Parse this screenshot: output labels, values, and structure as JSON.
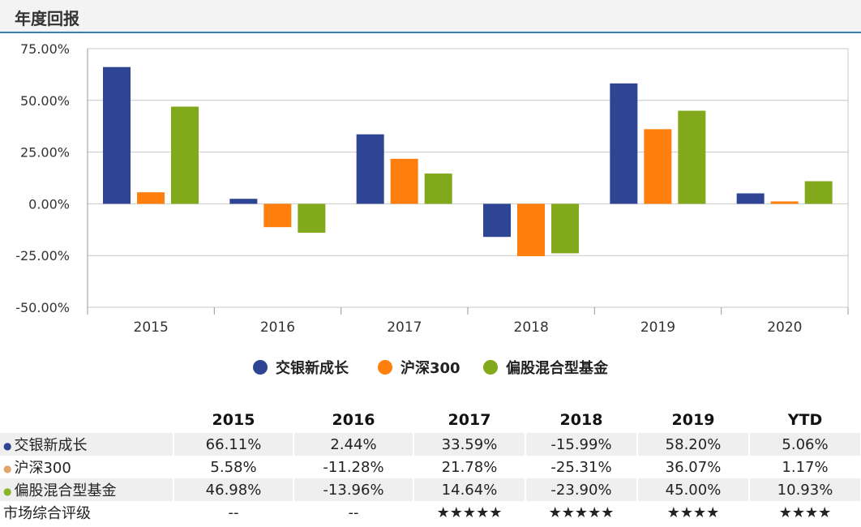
{
  "header": {
    "title": "年度回报"
  },
  "chart_data": {
    "type": "bar",
    "categories": [
      "2015",
      "2016",
      "2017",
      "2018",
      "2019",
      "2020"
    ],
    "series": [
      {
        "name": "交银新成长",
        "color": "#2e4593",
        "values": [
          66.11,
          2.44,
          33.59,
          -15.99,
          58.2,
          5.06
        ]
      },
      {
        "name": "沪深300",
        "color": "#ff7f0e",
        "values": [
          5.58,
          -11.28,
          21.78,
          -25.31,
          36.07,
          1.17
        ]
      },
      {
        "name": "偏股混合型基金",
        "color": "#82a91b",
        "values": [
          46.98,
          -13.96,
          14.64,
          -23.9,
          45.0,
          10.93
        ]
      }
    ],
    "yticks": [
      "75.00%",
      "50.00%",
      "25.00%",
      "0.00%",
      "-25.00%",
      "-50.00%"
    ],
    "ylim": [
      -50,
      75
    ],
    "grid": true,
    "legend_position": "bottom"
  },
  "table": {
    "headers": [
      "",
      "2015",
      "2016",
      "2017",
      "2018",
      "2019",
      "YTD"
    ],
    "rows": [
      {
        "label": "交银新成长",
        "bullet_color": "#2e4593",
        "cells": [
          "66.11%",
          "2.44%",
          "33.59%",
          "-15.99%",
          "58.20%",
          "5.06%"
        ]
      },
      {
        "label": "沪深300",
        "bullet_color": "#e0a66a",
        "cells": [
          "5.58%",
          "-11.28%",
          "21.78%",
          "-25.31%",
          "36.07%",
          "1.17%"
        ]
      },
      {
        "label": "偏股混合型基金",
        "bullet_color": "#8ab42a",
        "cells": [
          "46.98%",
          "-13.96%",
          "14.64%",
          "-23.90%",
          "45.00%",
          "10.93%"
        ]
      }
    ],
    "rating": {
      "label": "市场综合评级",
      "cells": [
        "--",
        "--",
        "★★★★★",
        "★★★★★",
        "★★★★",
        "★★★★"
      ]
    }
  }
}
